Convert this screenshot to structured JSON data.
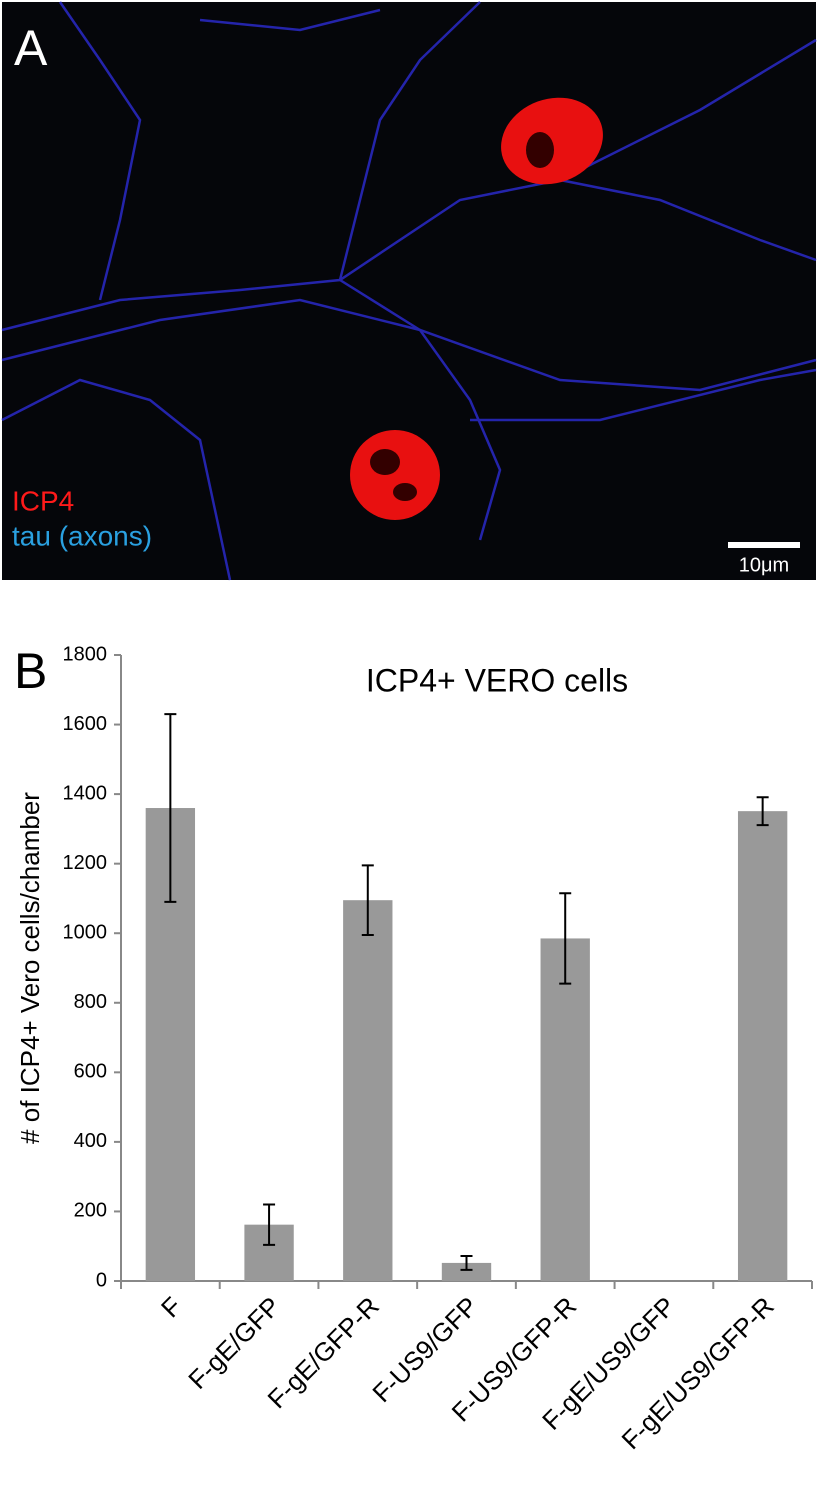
{
  "panel_a": {
    "label": "A",
    "legend": [
      "ICP4",
      "tau (axons)"
    ],
    "scale_bar": "10μm"
  },
  "panel_b": {
    "label": "B"
  },
  "chart_data": {
    "type": "bar",
    "title": "ICP4+ VERO cells",
    "y_label": "# of ICP4+ Vero cells/chamber",
    "categories": [
      "F",
      "F-gE/GFP",
      "F-gE/GFP-R",
      "F-US9/GFP",
      "F-US9/GFP-R",
      "F-gE/US9/GFP",
      "F-gE/US9/GFP-R"
    ],
    "values": [
      1360,
      162,
      1095,
      52,
      985,
      0,
      1351
    ],
    "errors": [
      270,
      58,
      100,
      20,
      130,
      0,
      40
    ],
    "color": "#999999",
    "ylim": [
      0,
      1800
    ],
    "yticks": [
      0,
      200,
      400,
      600,
      800,
      1000,
      1200,
      1400,
      1600,
      1800
    ],
    "grid": false
  }
}
